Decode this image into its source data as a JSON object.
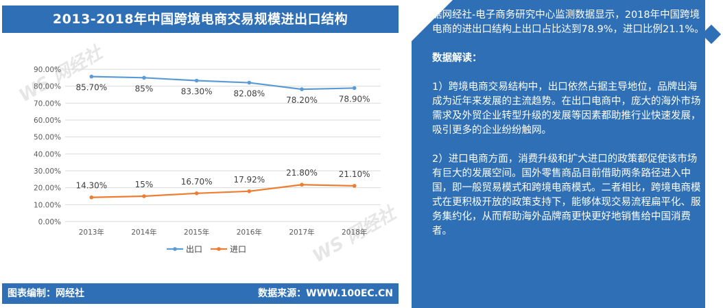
{
  "title": "2013-2018年中国跨境电商交易规模进出口结构",
  "footer": {
    "left": "图表编制：网经社",
    "right": "数据来源：WWW.100EC.CN"
  },
  "watermark": {
    "brand": "网经社",
    "site": "www.100EC.CN"
  },
  "chart_data": {
    "type": "line",
    "categories": [
      "2013年",
      "2014年",
      "2015年",
      "2016年",
      "2017年",
      "2018年"
    ],
    "series": [
      {
        "name": "出口",
        "values": [
          85.7,
          85,
          83.3,
          82.08,
          78.2,
          78.9
        ],
        "labels": [
          "85.70%",
          "85%",
          "83.30%",
          "82.08%",
          "78.20%",
          "78.90%"
        ],
        "color": "#5b9bd5"
      },
      {
        "name": "进口",
        "values": [
          14.3,
          15,
          16.7,
          17.92,
          21.8,
          21.1
        ],
        "labels": [
          "14.30%",
          "15%",
          "16.70%",
          "17.92%",
          "21.80%",
          "21.10%"
        ],
        "color": "#ed7d31"
      }
    ],
    "yticks": [
      "0.00%",
      "10.00%",
      "20.00%",
      "30.00%",
      "40.00%",
      "50.00%",
      "60.00%",
      "70.00%",
      "80.00%",
      "90.00%"
    ],
    "ylim": [
      0,
      90
    ],
    "grid": true,
    "legend": "bottom"
  },
  "panel": {
    "intro": "据网经社-电子商务研究中心监测数据显示，2018年中国跨境电商的进出口结构上出口占比达到78.9%，进口比例21.1%。",
    "heading": "数据解读：",
    "p1": "1）跨境电商交易结构中，出口依然占据主导地位，品牌出海成为近年来发展的主流趋势。在出口电商中，庞大的海外市场需求及外贸企业转型升级的发展等因素都助推行业快速发展，吸引更多的企业纷纷触网。",
    "p2": "2）进口电商方面，消费升级和扩大进口的政策都促使该市场有巨大的发展空间。国外零售商品目前借助两条路径进入中国，即一般贸易模式和跨境电商模式。二者相比，跨境电商模式在更积极开放的政策支持下，能够体现交易流程扁平化、服务集约化，从而帮助海外品牌商更快更好地销售给中国消费者。"
  }
}
